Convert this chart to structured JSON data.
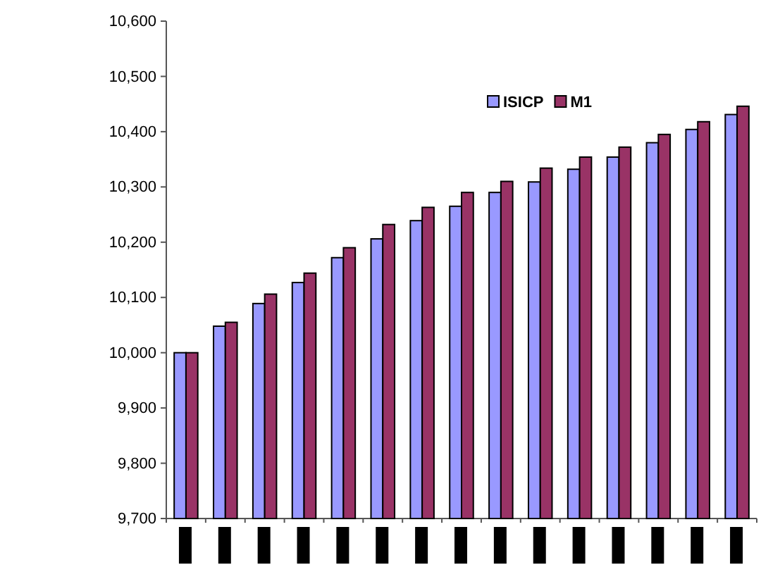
{
  "chart_data": {
    "type": "bar",
    "categories": [
      null,
      null,
      null,
      null,
      null,
      null,
      null,
      null,
      null,
      null,
      null,
      null,
      null,
      null,
      null
    ],
    "series": [
      {
        "name": "ISICP",
        "color": "#9999ff",
        "values": [
          10000,
          10048,
          10089,
          10127,
          10172,
          10206,
          10239,
          10265,
          10290,
          10309,
          10332,
          10354,
          10380,
          10404,
          10431
        ]
      },
      {
        "name": "M1",
        "color": "#993366",
        "values": [
          10000,
          10055,
          10106,
          10144,
          10190,
          10232,
          10263,
          10290,
          10310,
          10334,
          10354,
          10372,
          10395,
          10418,
          10446
        ]
      }
    ],
    "ylim": [
      9700,
      10600
    ],
    "yticks": [
      {
        "value": 9700,
        "label": "9,700"
      },
      {
        "value": 9800,
        "label": "9,800"
      },
      {
        "value": 9900,
        "label": "9,900"
      },
      {
        "value": 10000,
        "label": "10,000"
      },
      {
        "value": 10100,
        "label": "10,100"
      },
      {
        "value": 10200,
        "label": "10,200"
      },
      {
        "value": 10300,
        "label": "10,300"
      },
      {
        "value": 10400,
        "label": "10,400"
      },
      {
        "value": 10500,
        "label": "10,500"
      },
      {
        "value": 10600,
        "label": "10,600"
      }
    ],
    "grid": false,
    "legend": "top right"
  }
}
